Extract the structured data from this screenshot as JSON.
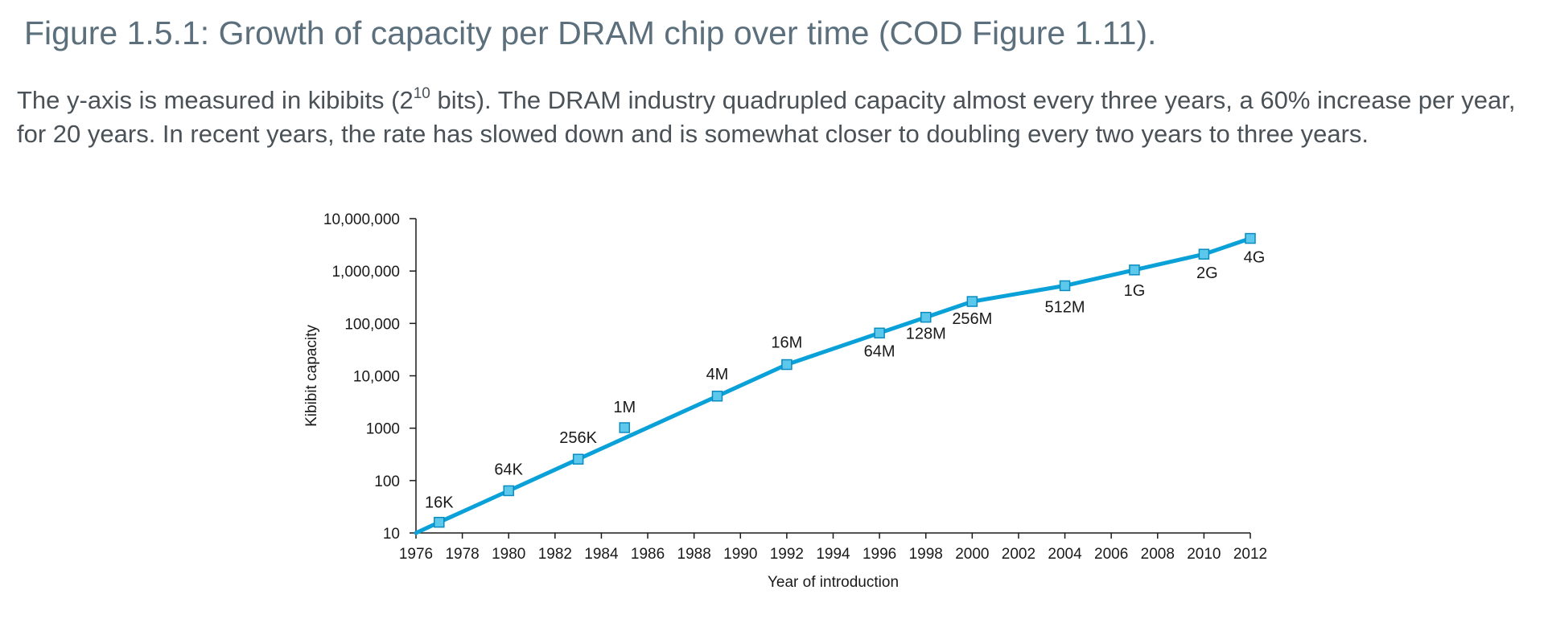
{
  "figure": {
    "title": "Figure 1.5.1: Growth of capacity per DRAM chip over time (COD Figure 1.11).",
    "caption_before_sup": "The y-axis is measured in kibibits (2",
    "caption_sup": "10",
    "caption_after_sup": " bits). The DRAM industry quadrupled capacity almost every three years, a 60% increase per year, for 20 years. In recent years, the rate has slowed down and is somewhat closer to doubling every two years to three years."
  },
  "colors": {
    "line": "#0aa1d8",
    "marker_fill": "#5cc8ec",
    "marker_stroke": "#0a8cc0",
    "axis": "#1a1a1a"
  },
  "chart_data": {
    "type": "line",
    "title": "",
    "xlabel": "Year of introduction",
    "ylabel": "Kibibit capacity",
    "yscale": "log",
    "xlim": [
      1976,
      2012
    ],
    "ylim": [
      10,
      10000000
    ],
    "grid": false,
    "x_ticks": [
      "1976",
      "1978",
      "1980",
      "1982",
      "1984",
      "1986",
      "1988",
      "1990",
      "1992",
      "1994",
      "1996",
      "1998",
      "2000",
      "2002",
      "2004",
      "2006",
      "2008",
      "2010",
      "2012"
    ],
    "y_ticks": [
      {
        "value": 10,
        "label": "10"
      },
      {
        "value": 100,
        "label": "100"
      },
      {
        "value": 1000,
        "label": "1000"
      },
      {
        "value": 10000,
        "label": "10,000"
      },
      {
        "value": 100000,
        "label": "100,000"
      },
      {
        "value": 1000000,
        "label": "1,000,000"
      },
      {
        "value": 10000000,
        "label": "10,000,000"
      }
    ],
    "line": [
      {
        "x": 1976,
        "y": 10
      },
      {
        "x": 1977,
        "y": 16
      },
      {
        "x": 1980,
        "y": 64
      },
      {
        "x": 1983,
        "y": 256
      },
      {
        "x": 1989,
        "y": 4096
      },
      {
        "x": 1992,
        "y": 16384
      },
      {
        "x": 1996,
        "y": 65536
      },
      {
        "x": 1998,
        "y": 131072
      },
      {
        "x": 2000,
        "y": 262144
      },
      {
        "x": 2004,
        "y": 524288
      },
      {
        "x": 2007,
        "y": 1048576
      },
      {
        "x": 2010,
        "y": 2097152
      },
      {
        "x": 2012,
        "y": 4194304
      }
    ],
    "points": [
      {
        "x": 1977,
        "y": 16,
        "label": "16K"
      },
      {
        "x": 1980,
        "y": 64,
        "label": "64K"
      },
      {
        "x": 1983,
        "y": 256,
        "label": "256K"
      },
      {
        "x": 1985,
        "y": 1024,
        "label": "1M"
      },
      {
        "x": 1989,
        "y": 4096,
        "label": "4M"
      },
      {
        "x": 1992,
        "y": 16384,
        "label": "16M"
      },
      {
        "x": 1996,
        "y": 65536,
        "label": "64M"
      },
      {
        "x": 1998,
        "y": 131072,
        "label": "128M"
      },
      {
        "x": 2000,
        "y": 262144,
        "label": "256M"
      },
      {
        "x": 2004,
        "y": 524288,
        "label": "512M"
      },
      {
        "x": 2007,
        "y": 1048576,
        "label": "1G"
      },
      {
        "x": 2010,
        "y": 2097152,
        "label": "2G"
      },
      {
        "x": 2012,
        "y": 4194304,
        "label": "4G"
      }
    ]
  }
}
